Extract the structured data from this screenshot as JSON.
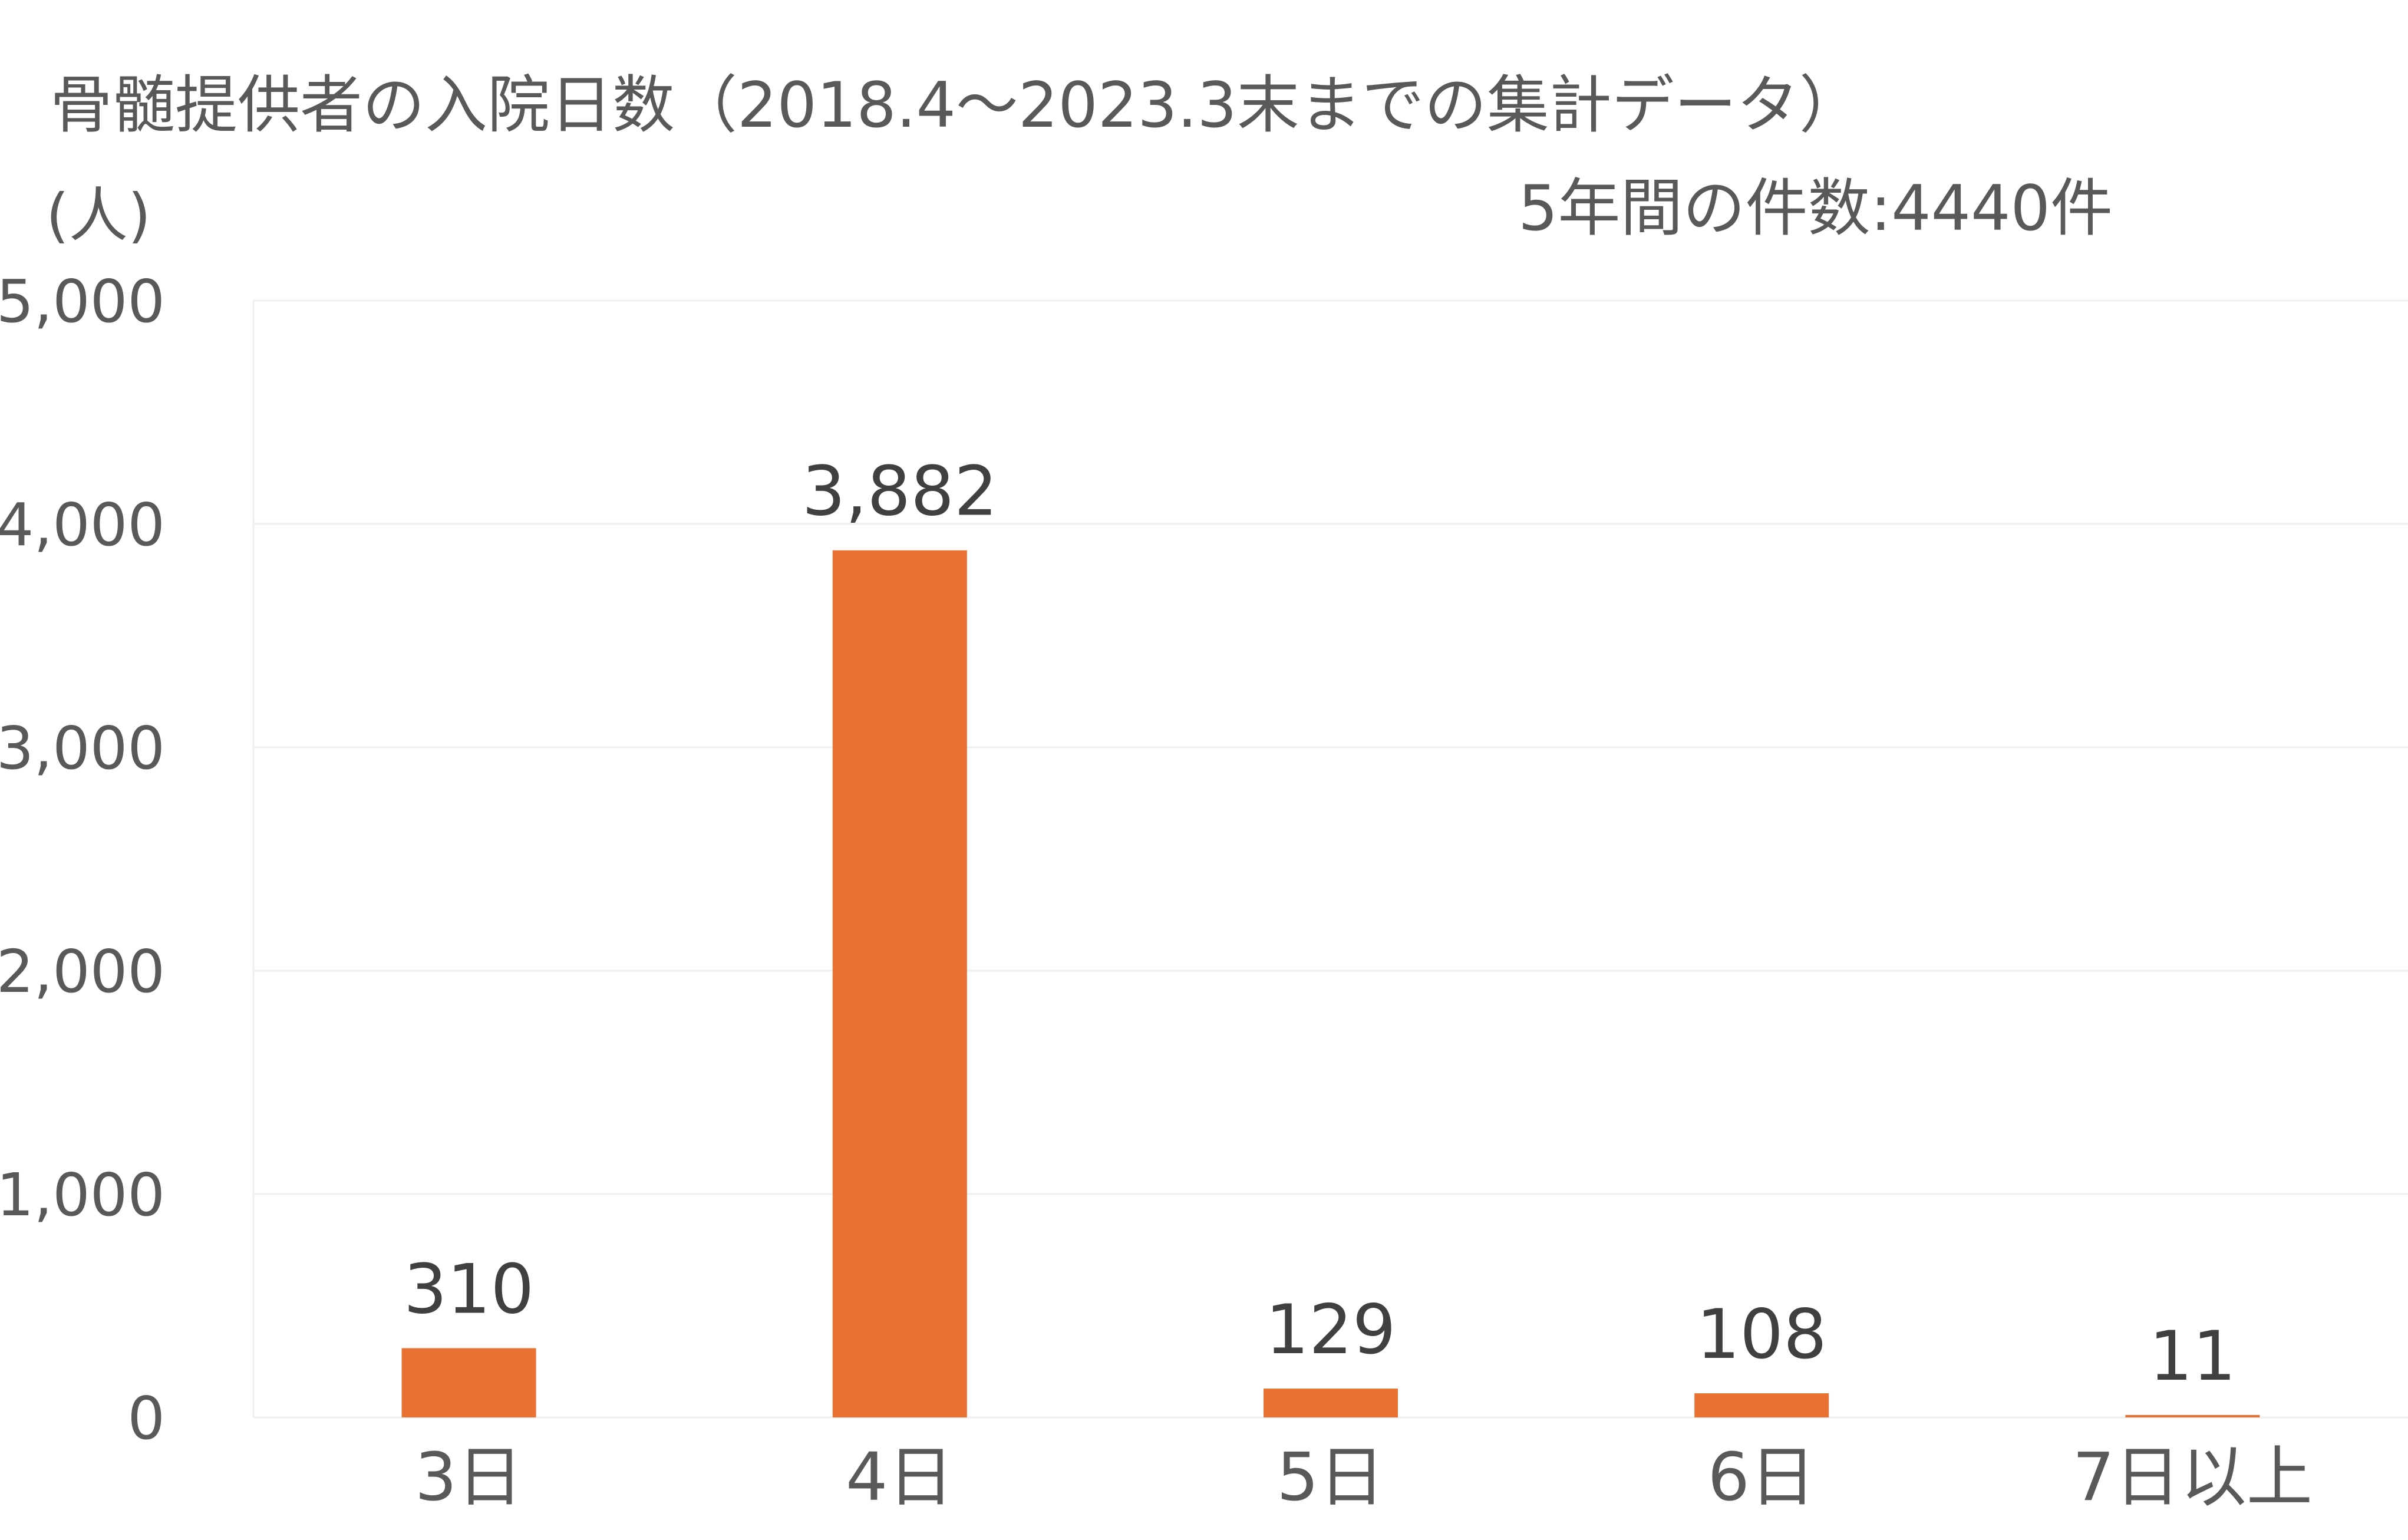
{
  "chart_data": {
    "type": "bar",
    "title": "骨髄提供者の入院日数（2018.4～2023.3末までの集計データ）",
    "subtitle": "5年間の件数:4440件",
    "ylabel": "(人)",
    "xlabel": "",
    "categories": [
      "3日",
      "4日",
      "5日",
      "6日",
      "7日以上"
    ],
    "values": [
      310,
      3882,
      129,
      108,
      11
    ],
    "data_labels": [
      "310",
      "3,882",
      "129",
      "108",
      "11"
    ],
    "ylim": [
      0,
      5000
    ],
    "yticks": [
      0,
      1000,
      2000,
      3000,
      4000,
      5000
    ],
    "ytick_labels": [
      "0",
      "1,000",
      "2,000",
      "3,000",
      "4,000",
      "5,000"
    ],
    "grid": true,
    "legend": "none",
    "colors": {
      "bar": "#E97132",
      "text": "#595959",
      "data_label": "#404040",
      "grid": "#EFEFEF"
    }
  }
}
